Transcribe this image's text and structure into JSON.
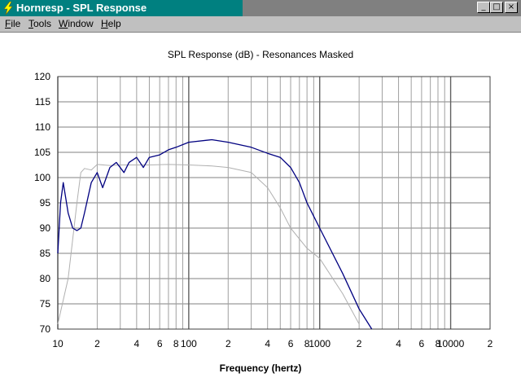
{
  "window": {
    "title": "Hornresp - SPL Response",
    "controls": {
      "minimize": "_",
      "maximize": "□",
      "close": "×"
    }
  },
  "menu": [
    {
      "label": "File"
    },
    {
      "label": "Tools"
    },
    {
      "label": "Window"
    },
    {
      "label": "Help"
    }
  ],
  "colors": {
    "titlebar_active": "#008080",
    "series_main": "#000080",
    "series_masked": "#b0b0b0",
    "grid": "#808080"
  },
  "chart_data": {
    "type": "line",
    "title": "SPL Response (dB) - Resonances Masked",
    "xlabel": "Frequency (hertz)",
    "ylabel": "",
    "x_scale": "log",
    "xlim": [
      10,
      20000
    ],
    "ylim": [
      70,
      120
    ],
    "grid": true,
    "y_ticks": [
      "120",
      "115",
      "110",
      "105",
      "100",
      "95",
      "90",
      "85",
      "80",
      "75",
      "70"
    ],
    "x_ticks": [
      {
        "f": 10,
        "label": "10"
      },
      {
        "f": 20,
        "label": "2"
      },
      {
        "f": 40,
        "label": "4"
      },
      {
        "f": 60,
        "label": "6"
      },
      {
        "f": 80,
        "label": "8"
      },
      {
        "f": 100,
        "label": "100"
      },
      {
        "f": 200,
        "label": "2"
      },
      {
        "f": 400,
        "label": "4"
      },
      {
        "f": 600,
        "label": "6"
      },
      {
        "f": 800,
        "label": "8"
      },
      {
        "f": 1000,
        "label": "1000"
      },
      {
        "f": 2000,
        "label": "2"
      },
      {
        "f": 4000,
        "label": "4"
      },
      {
        "f": 6000,
        "label": "6"
      },
      {
        "f": 8000,
        "label": "8"
      },
      {
        "f": 10000,
        "label": "10000"
      },
      {
        "f": 20000,
        "label": "2"
      }
    ],
    "series": [
      {
        "color": "#000080",
        "x": [
          10,
          10.5,
          11,
          12,
          13,
          14,
          15,
          16,
          18,
          20,
          22,
          25,
          28,
          32,
          35,
          40,
          45,
          50,
          60,
          70,
          80,
          100,
          150,
          200,
          300,
          400,
          500,
          600,
          700,
          800,
          1000,
          1500,
          2000,
          2500
        ],
        "y": [
          85,
          95,
          99,
          93,
          90,
          89.5,
          90,
          93,
          99,
          101,
          98,
          102,
          103,
          101,
          103,
          104,
          102,
          104,
          104.5,
          105.5,
          106,
          107,
          107.5,
          107,
          106,
          104.8,
          104,
          102,
          99,
          95,
          90,
          81,
          74,
          70
        ]
      },
      {
        "color": "#b0b0b0",
        "x": [
          10,
          12,
          14,
          15,
          16,
          18,
          20,
          25,
          30,
          40,
          50,
          70,
          100,
          150,
          200,
          300,
          400,
          500,
          600,
          800,
          1000,
          1500,
          2000
        ],
        "y": [
          71,
          80,
          95,
          101,
          101.8,
          101.5,
          102.6,
          102.4,
          102.5,
          102.5,
          102.5,
          102.6,
          102.5,
          102.3,
          102,
          101,
          98,
          94,
          90,
          86,
          84,
          77,
          71
        ]
      }
    ]
  }
}
